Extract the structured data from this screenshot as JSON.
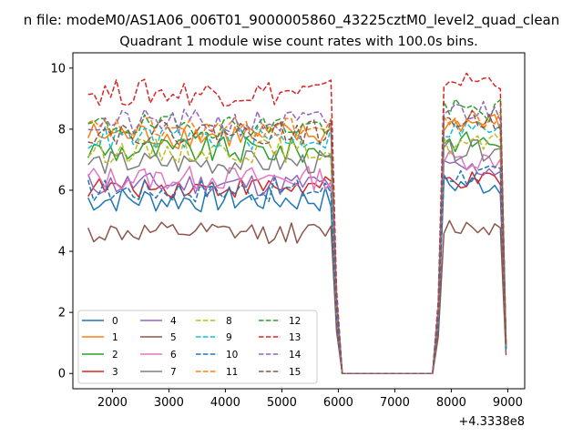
{
  "chart_data": {
    "type": "line",
    "suptitle": "n file: modeM0/AS1A06_006T01_9000005860_43225cztM0_level2_quad_clean",
    "title": "Quadrant 1 module wise count rates with 100.0s bins.",
    "xlabel": "",
    "ylabel": "",
    "x_offset_label": "+4.3338e8",
    "xlim": [
      1300,
      9300
    ],
    "ylim": [
      -0.5,
      10.5
    ],
    "x_ticks": [
      2000,
      3000,
      4000,
      5000,
      6000,
      7000,
      8000,
      9000
    ],
    "x_tick_labels": [
      "2000",
      "3000",
      "4000",
      "5000",
      "6000",
      "7000",
      "8000",
      "9000"
    ],
    "y_ticks": [
      0,
      2,
      4,
      6,
      8,
      10
    ],
    "y_tick_labels": [
      "0",
      "2",
      "4",
      "6",
      "8",
      "10"
    ],
    "legend": {
      "placement": "lower-left",
      "columns": 4
    },
    "segments": {
      "seg1_x": {
        "start": 1570,
        "step": 100,
        "end": 5870
      },
      "drop_x": [
        5970,
        6070
      ],
      "gap_x": [
        6170,
        6270,
        6370,
        6470,
        6570,
        6670,
        6770,
        6870,
        6970,
        7070,
        7170,
        7270,
        7370,
        7470,
        7570,
        7670
      ],
      "rise_x": [
        7770,
        7870
      ],
      "seg2_x": {
        "start": 7870,
        "step": 100,
        "end": 8870
      },
      "end_x": 8970
    },
    "series": [
      {
        "name": "0",
        "color": "#1f77b4",
        "style": "solid",
        "base1": 5.7,
        "amp1": 0.45,
        "base2": 6.2,
        "amp2": 0.4,
        "end": 0.9
      },
      {
        "name": "1",
        "color": "#ff7f0e",
        "style": "solid",
        "base1": 7.8,
        "amp1": 0.45,
        "base2": 8.2,
        "amp2": 0.35,
        "end": 0.9
      },
      {
        "name": "2",
        "color": "#2ca02c",
        "style": "solid",
        "base1": 7.3,
        "amp1": 0.45,
        "base2": 7.6,
        "amp2": 0.35,
        "end": 0.8
      },
      {
        "name": "3",
        "color": "#d62728",
        "style": "solid",
        "base1": 6.1,
        "amp1": 0.35,
        "base2": 6.3,
        "amp2": 0.3,
        "end": 0.8
      },
      {
        "name": "4",
        "color": "#9467bd",
        "style": "solid",
        "base1": 6.2,
        "amp1": 0.4,
        "base2": 6.7,
        "amp2": 0.35,
        "end": 0.8
      },
      {
        "name": "5",
        "color": "#8c564b",
        "style": "solid",
        "base1": 4.6,
        "amp1": 0.35,
        "base2": 4.8,
        "amp2": 0.3,
        "end": 0.6
      },
      {
        "name": "6",
        "color": "#e377c2",
        "style": "solid",
        "base1": 6.4,
        "amp1": 0.4,
        "base2": 7.0,
        "amp2": 0.35,
        "end": 0.8
      },
      {
        "name": "7",
        "color": "#7f7f7f",
        "style": "solid",
        "base1": 6.9,
        "amp1": 0.4,
        "base2": 7.3,
        "amp2": 0.35,
        "end": 0.8
      },
      {
        "name": "8",
        "color": "#bcbd22",
        "style": "dashed",
        "base1": 7.3,
        "amp1": 0.4,
        "base2": 7.5,
        "amp2": 0.35,
        "end": 0.9
      },
      {
        "name": "9",
        "color": "#17becf",
        "style": "dashed",
        "base1": 7.7,
        "amp1": 0.4,
        "base2": 8.0,
        "amp2": 0.35,
        "end": 0.9
      },
      {
        "name": "10",
        "color": "#1f77b4",
        "style": "dashed",
        "base1": 6.0,
        "amp1": 0.4,
        "base2": 6.5,
        "amp2": 0.35,
        "end": 0.8
      },
      {
        "name": "11",
        "color": "#ff7f0e",
        "style": "dashed",
        "base1": 8.0,
        "amp1": 0.4,
        "base2": 8.3,
        "amp2": 0.35,
        "end": 1.0
      },
      {
        "name": "12",
        "color": "#2ca02c",
        "style": "dashed",
        "base1": 8.1,
        "amp1": 0.4,
        "base2": 8.6,
        "amp2": 0.4,
        "end": 1.0
      },
      {
        "name": "13",
        "color": "#d62728",
        "style": "dashed",
        "base1": 9.2,
        "amp1": 0.45,
        "base2": 9.6,
        "amp2": 0.3,
        "end": 1.0
      },
      {
        "name": "14",
        "color": "#9467bd",
        "style": "dashed",
        "base1": 8.2,
        "amp1": 0.45,
        "base2": 8.6,
        "amp2": 0.4,
        "end": 1.0
      },
      {
        "name": "15",
        "color": "#8c564b",
        "style": "dashed",
        "base1": 7.9,
        "amp1": 0.4,
        "base2": 8.3,
        "amp2": 0.35,
        "end": 0.9
      }
    ]
  }
}
